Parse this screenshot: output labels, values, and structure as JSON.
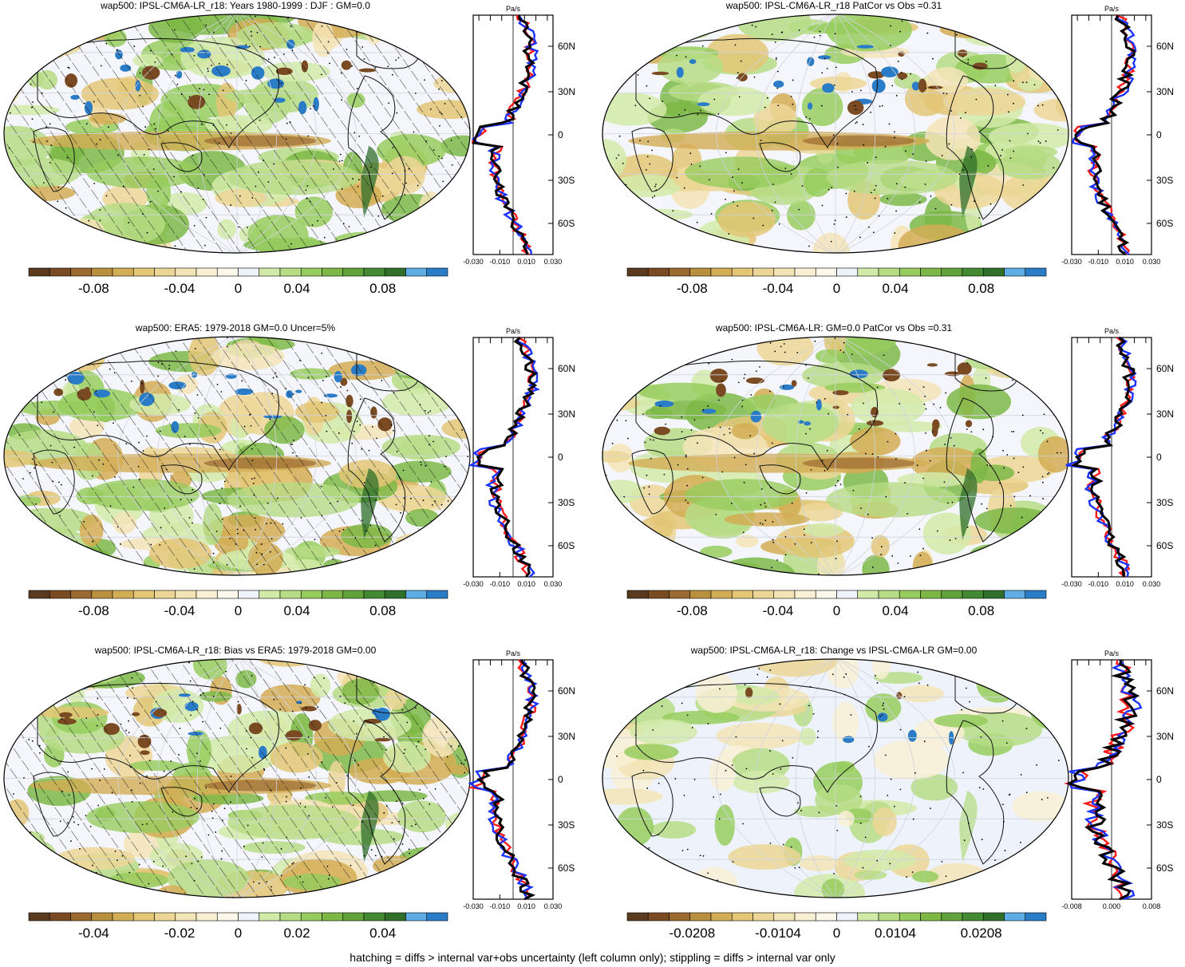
{
  "footnote": "hatching = diffs > internal var+obs uncertainty (left column only); stippling = diffs > internal var only",
  "profile_unit": "Pa/s",
  "lat_labels": [
    "60N",
    "30N",
    "0",
    "30S",
    "60S"
  ],
  "palette": [
    "#5a3a1e",
    "#7a4a22",
    "#9b6a30",
    "#b9903e",
    "#d3ad55",
    "#e3c676",
    "#ecd697",
    "#f3e4b6",
    "#f8efd4",
    "#fbf7ea",
    "#eef3fb",
    "#d2eaa8",
    "#b6dc85",
    "#97cc5e",
    "#7db847",
    "#5fa33a",
    "#448a32",
    "#2f6f2a",
    "#5dace4",
    "#2a7cc6"
  ],
  "panels": [
    {
      "title": "wap500: IPSL-CM6A-LR_r18: Years 1980-1999 : DJF : GM=0.0",
      "cbar_labels": [
        "-0.08",
        "-0.04",
        "0",
        "0.04",
        "0.08"
      ],
      "prof_ticks": [
        "-0.030",
        "-0.010",
        "0.010",
        "0.030"
      ],
      "hatch": true
    },
    {
      "title": "wap500: IPSL-CM6A-LR_r18 PatCor vs Obs =0.31",
      "cbar_labels": [
        "-0.08",
        "-0.04",
        "0",
        "0.04",
        "0.08"
      ],
      "prof_ticks": [
        "-0.030",
        "-0.010",
        "0.010",
        "0.030"
      ],
      "hatch": false
    },
    {
      "title": "wap500: ERA5: 1979-2018 GM=0.0 Uncer=5%",
      "cbar_labels": [
        "-0.08",
        "-0.04",
        "0",
        "0.04",
        "0.08"
      ],
      "prof_ticks": [
        "-0.030",
        "-0.010",
        "0.010",
        "0.030"
      ],
      "hatch": true
    },
    {
      "title": "wap500: IPSL-CM6A-LR: GM=0.0 PatCor vs Obs =0.31",
      "cbar_labels": [
        "-0.08",
        "-0.04",
        "0",
        "0.04",
        "0.08"
      ],
      "prof_ticks": [
        "-0.030",
        "-0.010",
        "0.010",
        "0.030"
      ],
      "hatch": false
    },
    {
      "title": "wap500: IPSL-CM6A-LR_r18: Bias vs ERA5: 1979-2018 GM=0.00",
      "cbar_labels": [
        "-0.04",
        "-0.02",
        "0",
        "0.02",
        "0.04"
      ],
      "prof_ticks": [
        "-0.030",
        "-0.010",
        "0.010",
        "0.030"
      ],
      "hatch": true
    },
    {
      "title": "wap500: IPSL-CM6A-LR_r18: Change vs IPSL-CM6A-LR GM=0.00",
      "cbar_labels": [
        "-0.0208",
        "-0.0104",
        "0",
        "0.0104",
        "0.0208"
      ],
      "prof_ticks": [
        "-0.008",
        "0.000",
        "0.008"
      ],
      "hatch": false
    }
  ]
}
